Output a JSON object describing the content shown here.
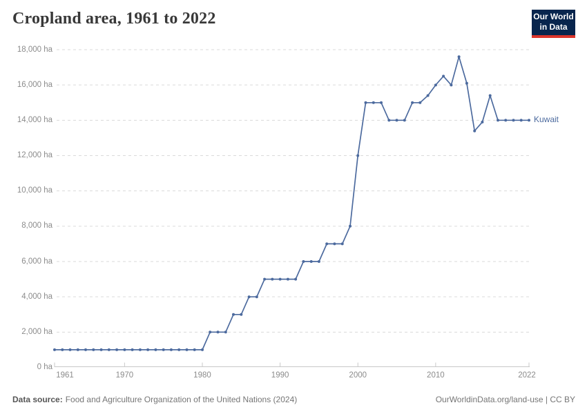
{
  "logo": {
    "line1": "Our World",
    "line2": "in Data"
  },
  "colors": {
    "line": "#4c6a9e",
    "series_label": "#4c6a9e",
    "logo_bg": "#08254d",
    "logo_accent": "#dc352b",
    "grid": "#dadada",
    "axis": "#c8c8c8",
    "tick_text": "#8b8b8b",
    "title_text": "#383838",
    "footer_text": "#757575"
  },
  "chart_data": {
    "type": "line",
    "title": "Cropland area, 1961 to 2022",
    "unit": "ha",
    "xlim": [
      1961,
      2022
    ],
    "ylim": [
      0,
      18000
    ],
    "grid": "horizontal-dashed",
    "legend_position": "right-of-line-end",
    "x_ticks": {
      "values": [
        1961,
        1970,
        1980,
        1990,
        2000,
        2010,
        2022
      ],
      "labels": [
        "1961",
        "1970",
        "1980",
        "1990",
        "2000",
        "2010",
        "2022"
      ]
    },
    "y_ticks": {
      "values": [
        0,
        2000,
        4000,
        6000,
        8000,
        10000,
        12000,
        14000,
        16000,
        18000
      ],
      "labels": [
        "0 ha",
        "2,000 ha",
        "4,000 ha",
        "6,000 ha",
        "8,000 ha",
        "10,000 ha",
        "12,000 ha",
        "14,000 ha",
        "16,000 ha",
        "18,000 ha"
      ]
    },
    "series": [
      {
        "name": "Kuwait",
        "color": "#4c6a9e",
        "x": [
          1961,
          1962,
          1963,
          1964,
          1965,
          1966,
          1967,
          1968,
          1969,
          1970,
          1971,
          1972,
          1973,
          1974,
          1975,
          1976,
          1977,
          1978,
          1979,
          1980,
          1981,
          1982,
          1983,
          1984,
          1985,
          1986,
          1987,
          1988,
          1989,
          1990,
          1991,
          1992,
          1993,
          1994,
          1995,
          1996,
          1997,
          1998,
          1999,
          2000,
          2001,
          2002,
          2003,
          2004,
          2005,
          2006,
          2007,
          2008,
          2009,
          2010,
          2011,
          2012,
          2013,
          2014,
          2015,
          2016,
          2017,
          2018,
          2019,
          2020,
          2021,
          2022
        ],
        "values": [
          1000,
          1000,
          1000,
          1000,
          1000,
          1000,
          1000,
          1000,
          1000,
          1000,
          1000,
          1000,
          1000,
          1000,
          1000,
          1000,
          1000,
          1000,
          1000,
          1000,
          2000,
          2000,
          2000,
          3000,
          3000,
          4000,
          4000,
          5000,
          5000,
          5000,
          5000,
          5000,
          6000,
          6000,
          6000,
          7000,
          7000,
          7000,
          8000,
          12000,
          15000,
          15000,
          15000,
          14000,
          14000,
          14000,
          15000,
          15000,
          15400,
          16000,
          16500,
          16000,
          17600,
          16100,
          13400,
          13900,
          15400,
          14000,
          14000,
          14000,
          14000,
          14000
        ]
      }
    ]
  },
  "footer": {
    "source_label": "Data source:",
    "source_text": "Food and Agriculture Organization of the United Nations (2024)",
    "credit": "OurWorldinData.org/land-use | CC BY"
  }
}
